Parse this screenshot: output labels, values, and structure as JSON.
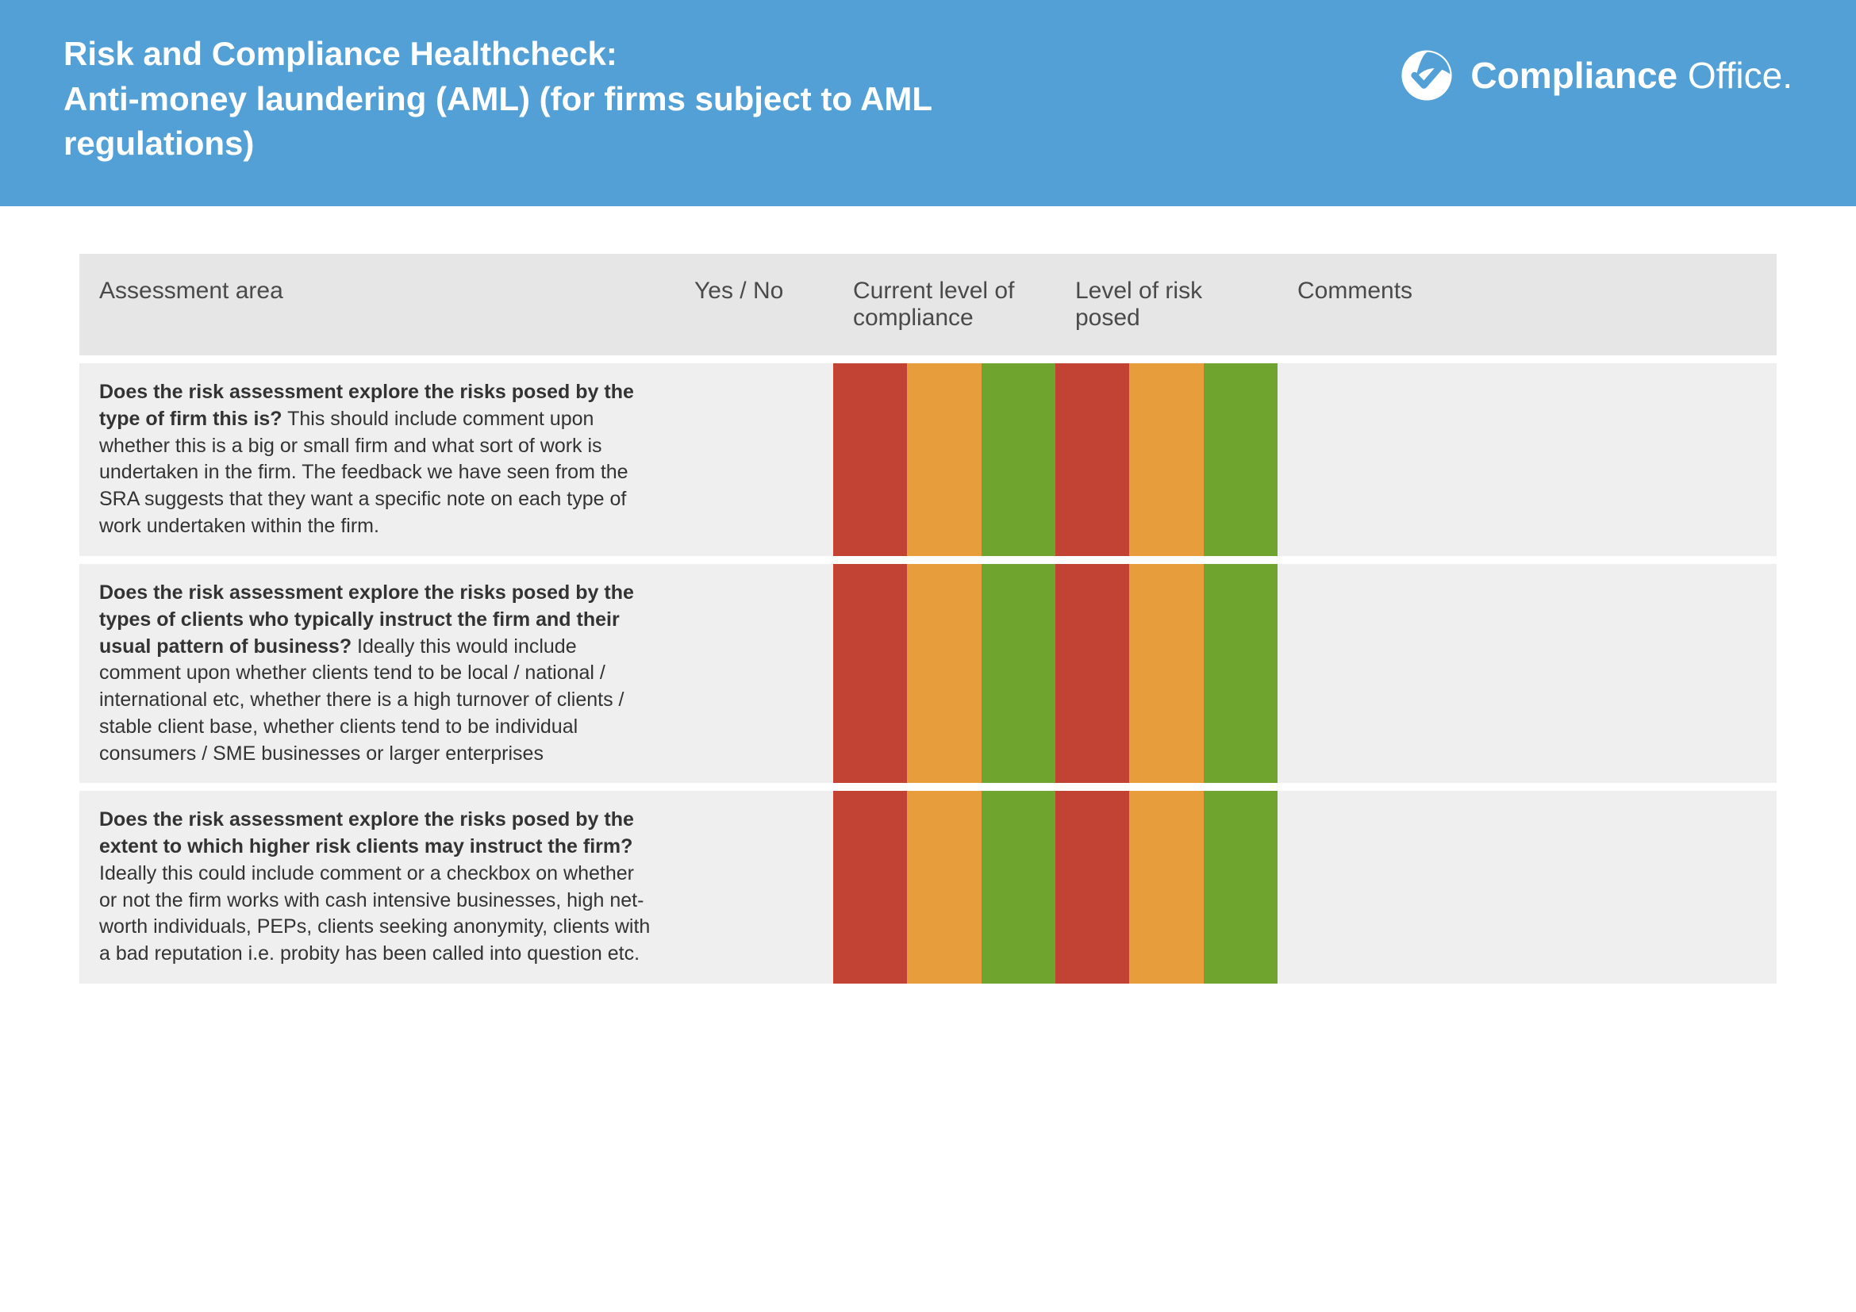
{
  "header": {
    "title": "Risk and Compliance Healthcheck:\nAnti-money laundering (AML) (for firms subject to AML regulations)",
    "logo_bold": "Compliance",
    "logo_light": " Office.",
    "header_bg": "#53a0d7"
  },
  "columns": {
    "assessment": "Assessment area",
    "yesno": "Yes / No",
    "compliance": "Current level of compliance",
    "risk": "Level of risk posed",
    "comments": "Comments"
  },
  "rag_colors": {
    "red": "#c24334",
    "amber": "#e89d3c",
    "green": "#6fa52f"
  },
  "rows": [
    {
      "bold": "Does the risk assessment explore the risks posed by the type of firm this is?",
      "rest": " This should include comment upon whether this is a big or small firm and what sort of work is undertaken in the firm. The feedback we have seen from the SRA suggests that they want a specific note on each type of work undertaken within the firm.",
      "yesno": "",
      "comments": ""
    },
    {
      "bold": "Does the risk assessment explore the risks posed by  the types of clients who typically instruct the firm and their usual pattern of business?",
      "rest": " Ideally this would include comment upon whether clients tend to be local / national / international etc, whether there is a high turnover of clients / stable client base, whether clients tend to be individual consumers / SME businesses or larger enterprises",
      "yesno": "",
      "comments": ""
    },
    {
      "bold": "Does the risk assessment explore the risks posed by the extent to which higher risk clients may instruct the firm?",
      "rest": " Ideally this could include comment or a checkbox on whether or not the firm works with cash intensive businesses, high net-worth individuals, PEPs, clients seeking anonymity, clients with a bad reputation i.e. probity has been called into question etc.",
      "yesno": "",
      "comments": ""
    }
  ]
}
